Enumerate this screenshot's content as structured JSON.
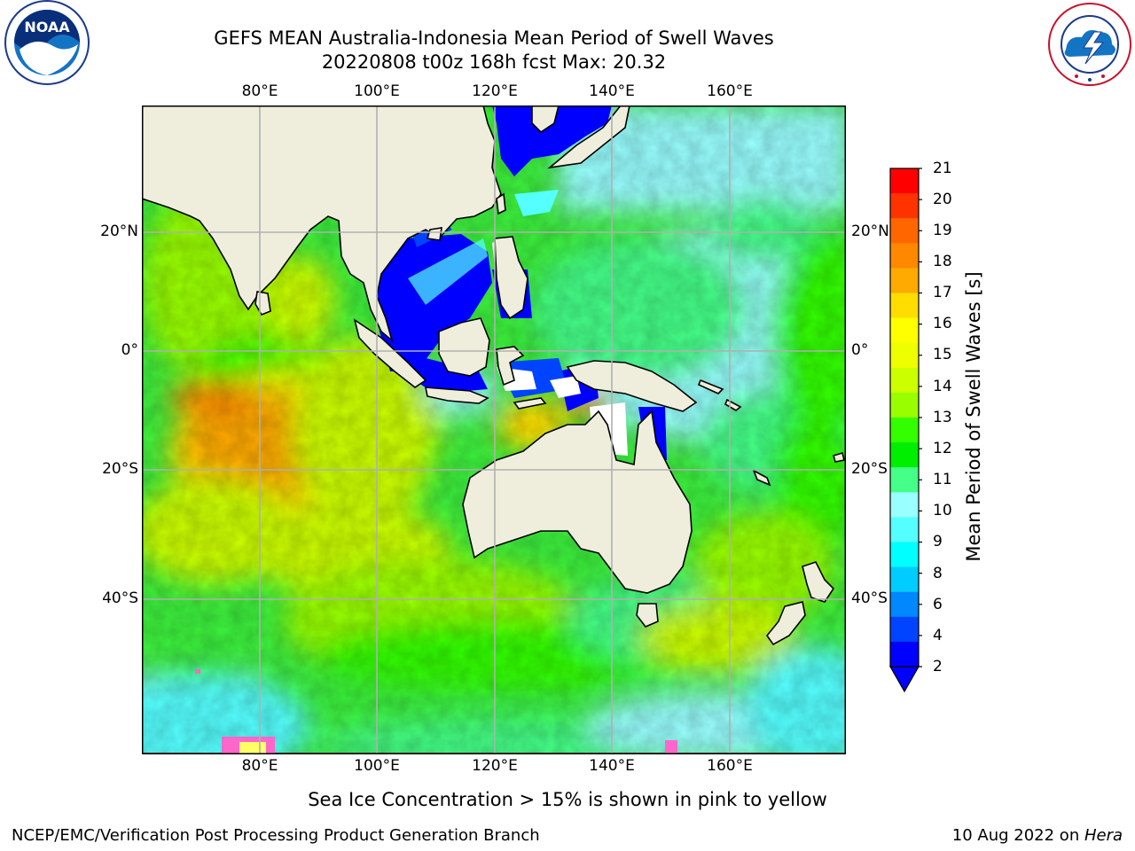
{
  "title": {
    "line1": "GEFS MEAN Australia-Indonesia Mean Period of Swell Waves",
    "line2": "20220808 t00z 168h fcst   Max: 20.32"
  },
  "map": {
    "lon_labels": [
      "80°E",
      "100°E",
      "120°E",
      "140°E",
      "160°E"
    ],
    "lat_labels": [
      "20°N",
      "0°",
      "20°S",
      "40°S"
    ],
    "extent": {
      "lon": [
        60,
        180
      ],
      "lat": [
        -68,
        42
      ]
    }
  },
  "colorbar": {
    "label": "Mean Period of Swell Waves [s]",
    "ticks": [
      "21",
      "20",
      "19",
      "18",
      "17",
      "16",
      "15",
      "14",
      "13",
      "12",
      "11",
      "10",
      "9",
      "8",
      "6",
      "4",
      "2"
    ],
    "colors": [
      "#ff0000",
      "#ff3300",
      "#ff6600",
      "#ff8800",
      "#ffaa00",
      "#ffdd00",
      "#ffff00",
      "#eeff00",
      "#ccff00",
      "#99ff00",
      "#33ff00",
      "#00ee00",
      "#44ff88",
      "#99ffff",
      "#55ffff",
      "#00ffff",
      "#00ccff",
      "#0088ff",
      "#0044ff",
      "#0000ff"
    ]
  },
  "note": "Sea Ice Concentration > 15% is shown in pink to yellow",
  "footer": {
    "left": "NCEP/EMC/Verification Post Processing Product Generation Branch",
    "right_date": "10 Aug 2022 on ",
    "right_machine": "Hera"
  },
  "logos": {
    "noaa": {
      "icon": "noaa-logo",
      "text": "NOAA"
    },
    "nws": {
      "icon": "nws-logo",
      "text": "NATIONAL WEATHER SERVICE"
    }
  }
}
